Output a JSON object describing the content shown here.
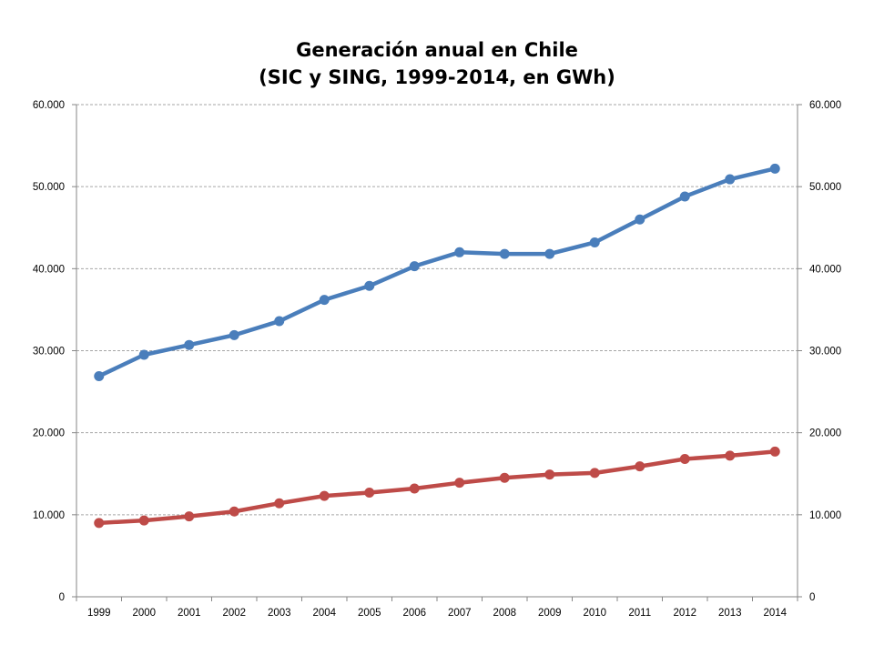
{
  "chart_data": {
    "type": "line",
    "title_line1": "Generación anual en Chile",
    "title_line2": "(SIC y SING, 1999-2014, en GWh)",
    "categories": [
      "1999",
      "2000",
      "2001",
      "2002",
      "2003",
      "2004",
      "2005",
      "2006",
      "2007",
      "2008",
      "2009",
      "2010",
      "2011",
      "2012",
      "2013",
      "2014"
    ],
    "series": [
      {
        "color": "#4a7ebb",
        "values": [
          26900,
          29500,
          30700,
          31900,
          33600,
          36200,
          37900,
          40300,
          42000,
          41800,
          41800,
          43200,
          46000,
          48800,
          50900,
          52200
        ]
      },
      {
        "color": "#be4b48",
        "values": [
          9000,
          9300,
          9800,
          10400,
          11400,
          12300,
          12700,
          13200,
          13900,
          14500,
          14900,
          15100,
          15900,
          16800,
          17200,
          17700
        ]
      }
    ],
    "ylim": [
      0,
      60000
    ],
    "y_ticks": [
      "0",
      "10.000",
      "20.000",
      "30.000",
      "40.000",
      "50.000",
      "60.000"
    ],
    "y_axis_right": true,
    "grid": true,
    "gridline_color": "#a6a6a6",
    "legend": "none"
  }
}
